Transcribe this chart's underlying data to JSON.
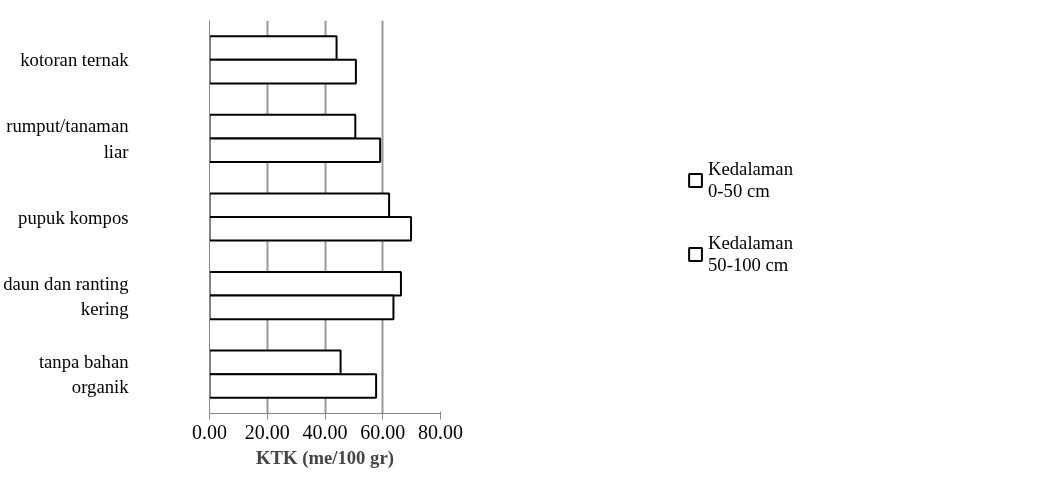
{
  "chart_data": {
    "type": "bar",
    "orientation": "horizontal",
    "xlabel": "KTK (me/100 gr)",
    "categories": [
      "kotoran ternak",
      "rumput/tanaman liar",
      "pupuk kompos",
      "daun dan ranting kering",
      "tanpa bahan organik"
    ],
    "series": [
      {
        "name": "Kedalaman 0-50 cm",
        "color": "#ffffff",
        "values": [
          44.0,
          50.5,
          62.2,
          66.3,
          45.4
        ]
      },
      {
        "name": "Kedalaman 50-100 cm",
        "color": "#ffffff",
        "values": [
          50.7,
          59.1,
          69.8,
          63.7,
          57.7
        ]
      }
    ],
    "xlim": [
      0,
      80
    ],
    "xticks": [
      {
        "value": 0,
        "label": "0.00"
      },
      {
        "value": 20,
        "label": "20.00"
      },
      {
        "value": 40,
        "label": "40.00"
      },
      {
        "value": 60,
        "label": "60.00"
      },
      {
        "value": 80,
        "label": "80.00"
      }
    ],
    "grid": "x",
    "legend": "right"
  }
}
